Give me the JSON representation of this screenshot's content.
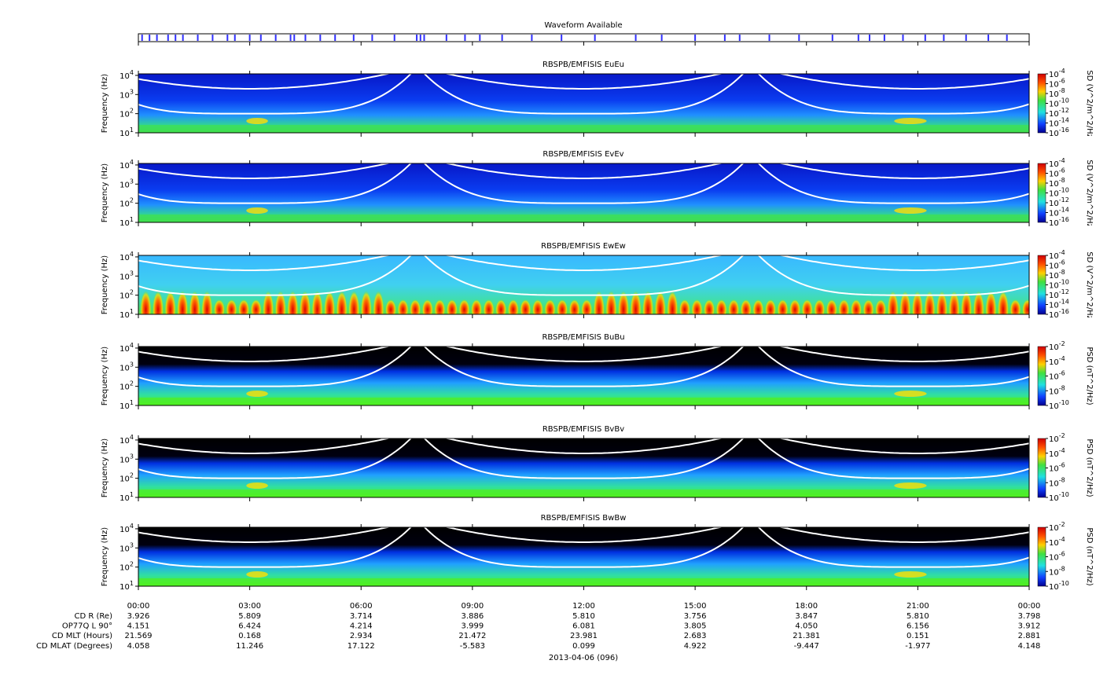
{
  "waveform": {
    "type": "event-bar",
    "title": "Waveform Available",
    "xlim": [
      0,
      24
    ],
    "color": "#3030ff",
    "events": [
      0.1,
      0.3,
      0.5,
      0.8,
      1.0,
      1.2,
      1.6,
      2.0,
      2.4,
      2.6,
      3.0,
      3.3,
      3.7,
      4.1,
      4.2,
      4.5,
      4.9,
      5.3,
      5.8,
      6.3,
      6.9,
      7.5,
      7.6,
      7.7,
      8.3,
      8.8,
      9.2,
      9.8,
      10.6,
      11.4,
      12.3,
      13.4,
      14.1,
      15.0,
      15.8,
      16.2,
      17.0,
      17.8,
      18.7,
      19.4,
      19.7,
      20.1,
      20.6,
      21.2,
      21.7,
      22.3,
      22.9,
      23.4
    ]
  },
  "chart_data": [
    {
      "type": "spectrogram",
      "title": "RBSPB/EMFISIS  EuEu",
      "y_label": "Frequency (Hz)",
      "colorbar_label": "PSD (V^2/m^2/Hz)",
      "ylim": [
        10,
        12000
      ],
      "log_y": true,
      "yticks": [
        {
          "value": 10,
          "label": "10",
          "exponent": "1"
        },
        {
          "value": 100,
          "label": "10",
          "exponent": "2"
        },
        {
          "value": 1000,
          "label": "10",
          "exponent": "3"
        },
        {
          "value": 10000,
          "label": "10",
          "exponent": "4"
        }
      ],
      "clim": [
        1e-16,
        0.0001
      ],
      "cticks": [
        {
          "value": 0.0001,
          "label": "10",
          "exponent": "-4"
        },
        {
          "value": 1e-06,
          "label": "10",
          "exponent": "-6"
        },
        {
          "value": 1e-08,
          "label": "10",
          "exponent": "-8"
        },
        {
          "value": 1e-10,
          "label": "10",
          "exponent": "-10"
        },
        {
          "value": 1e-12,
          "label": "10",
          "exponent": "-12"
        },
        {
          "value": 1e-14,
          "label": "10",
          "exponent": "-14"
        },
        {
          "value": 1e-16,
          "label": "10",
          "exponent": "-16"
        }
      ]
    },
    {
      "type": "spectrogram",
      "title": "RBSPB/EMFISIS  EvEv",
      "y_label": "Frequency (Hz)",
      "colorbar_label": "PSD (V^2/m^2/Hz)",
      "ylim": [
        10,
        12000
      ],
      "log_y": true,
      "yticks": [
        {
          "value": 10,
          "label": "10",
          "exponent": "1"
        },
        {
          "value": 100,
          "label": "10",
          "exponent": "2"
        },
        {
          "value": 1000,
          "label": "10",
          "exponent": "3"
        },
        {
          "value": 10000,
          "label": "10",
          "exponent": "4"
        }
      ],
      "clim": [
        1e-16,
        0.0001
      ],
      "cticks": [
        {
          "value": 0.0001,
          "label": "10",
          "exponent": "-4"
        },
        {
          "value": 1e-06,
          "label": "10",
          "exponent": "-6"
        },
        {
          "value": 1e-08,
          "label": "10",
          "exponent": "-8"
        },
        {
          "value": 1e-10,
          "label": "10",
          "exponent": "-10"
        },
        {
          "value": 1e-12,
          "label": "10",
          "exponent": "-12"
        },
        {
          "value": 1e-14,
          "label": "10",
          "exponent": "-14"
        },
        {
          "value": 1e-16,
          "label": "10",
          "exponent": "-16"
        }
      ]
    },
    {
      "type": "spectrogram",
      "title": "RBSPB/EMFISIS  EwEw",
      "y_label": "Frequency (Hz)",
      "colorbar_label": "PSD (V^2/m^2/Hz)",
      "ylim": [
        10,
        12000
      ],
      "log_y": true,
      "yticks": [
        {
          "value": 10,
          "label": "10",
          "exponent": "1"
        },
        {
          "value": 100,
          "label": "10",
          "exponent": "2"
        },
        {
          "value": 1000,
          "label": "10",
          "exponent": "3"
        },
        {
          "value": 10000,
          "label": "10",
          "exponent": "4"
        }
      ],
      "clim": [
        1e-16,
        0.0001
      ],
      "cticks": [
        {
          "value": 0.0001,
          "label": "10",
          "exponent": "-4"
        },
        {
          "value": 1e-06,
          "label": "10",
          "exponent": "-6"
        },
        {
          "value": 1e-08,
          "label": "10",
          "exponent": "-8"
        },
        {
          "value": 1e-10,
          "label": "10",
          "exponent": "-10"
        },
        {
          "value": 1e-12,
          "label": "10",
          "exponent": "-12"
        },
        {
          "value": 1e-14,
          "label": "10",
          "exponent": "-14"
        },
        {
          "value": 1e-16,
          "label": "10",
          "exponent": "-16"
        }
      ]
    },
    {
      "type": "spectrogram",
      "title": "RBSPB/EMFISIS  BuBu",
      "y_label": "Frequency (Hz)",
      "colorbar_label": "PSD (nT^2/Hz)",
      "ylim": [
        10,
        12000
      ],
      "log_y": true,
      "yticks": [
        {
          "value": 10,
          "label": "10",
          "exponent": "1"
        },
        {
          "value": 100,
          "label": "10",
          "exponent": "2"
        },
        {
          "value": 1000,
          "label": "10",
          "exponent": "3"
        },
        {
          "value": 10000,
          "label": "10",
          "exponent": "4"
        }
      ],
      "clim": [
        1e-10,
        0.01
      ],
      "cticks": [
        {
          "value": 0.01,
          "label": "10",
          "exponent": "-2"
        },
        {
          "value": 0.0001,
          "label": "10",
          "exponent": "-4"
        },
        {
          "value": 1e-06,
          "label": "10",
          "exponent": "-6"
        },
        {
          "value": 1e-08,
          "label": "10",
          "exponent": "-8"
        },
        {
          "value": 1e-10,
          "label": "10",
          "exponent": "-10"
        }
      ]
    },
    {
      "type": "spectrogram",
      "title": "RBSPB/EMFISIS  BvBv",
      "y_label": "Frequency (Hz)",
      "colorbar_label": "PSD (nT^2/Hz)",
      "ylim": [
        10,
        12000
      ],
      "log_y": true,
      "yticks": [
        {
          "value": 10,
          "label": "10",
          "exponent": "1"
        },
        {
          "value": 100,
          "label": "10",
          "exponent": "2"
        },
        {
          "value": 1000,
          "label": "10",
          "exponent": "3"
        },
        {
          "value": 10000,
          "label": "10",
          "exponent": "4"
        }
      ],
      "clim": [
        1e-10,
        0.01
      ],
      "cticks": [
        {
          "value": 0.01,
          "label": "10",
          "exponent": "-2"
        },
        {
          "value": 0.0001,
          "label": "10",
          "exponent": "-4"
        },
        {
          "value": 1e-06,
          "label": "10",
          "exponent": "-6"
        },
        {
          "value": 1e-08,
          "label": "10",
          "exponent": "-8"
        },
        {
          "value": 1e-10,
          "label": "10",
          "exponent": "-10"
        }
      ]
    },
    {
      "type": "spectrogram",
      "title": "RBSPB/EMFISIS  BwBw",
      "y_label": "Frequency (Hz)",
      "colorbar_label": "PSD (nT^2/Hz)",
      "ylim": [
        10,
        12000
      ],
      "log_y": true,
      "yticks": [
        {
          "value": 10,
          "label": "10",
          "exponent": "1"
        },
        {
          "value": 100,
          "label": "10",
          "exponent": "2"
        },
        {
          "value": 1000,
          "label": "10",
          "exponent": "3"
        },
        {
          "value": 10000,
          "label": "10",
          "exponent": "4"
        }
      ],
      "clim": [
        1e-10,
        0.01
      ],
      "cticks": [
        {
          "value": 0.01,
          "label": "10",
          "exponent": "-2"
        },
        {
          "value": 0.0001,
          "label": "10",
          "exponent": "-4"
        },
        {
          "value": 1e-06,
          "label": "10",
          "exponent": "-6"
        },
        {
          "value": 1e-08,
          "label": "10",
          "exponent": "-8"
        },
        {
          "value": 1e-10,
          "label": "10",
          "exponent": "-10"
        }
      ]
    }
  ],
  "x_axis": {
    "xlim": [
      0,
      24
    ],
    "xticks": [
      {
        "value": 0,
        "label": "00:00"
      },
      {
        "value": 3,
        "label": "03:00"
      },
      {
        "value": 6,
        "label": "06:00"
      },
      {
        "value": 9,
        "label": "09:00"
      },
      {
        "value": 12,
        "label": "12:00"
      },
      {
        "value": 15,
        "label": "15:00"
      },
      {
        "value": 18,
        "label": "18:00"
      },
      {
        "value": 21,
        "label": "21:00"
      },
      {
        "value": 24,
        "label": "00:00"
      }
    ],
    "ephemeris": [
      {
        "label": "CD R (Re)",
        "values": [
          "3.926",
          "5.809",
          "3.714",
          "3.886",
          "5.810",
          "3.756",
          "3.847",
          "5.810",
          "3.798"
        ]
      },
      {
        "label": "OP77Q L 90°",
        "values": [
          "4.151",
          "6.424",
          "4.214",
          "3.999",
          "6.081",
          "3.805",
          "4.050",
          "6.156",
          "3.912"
        ]
      },
      {
        "label": "CD MLT (Hours)",
        "values": [
          "21.569",
          "0.168",
          "2.934",
          "21.472",
          "23.981",
          "2.683",
          "21.381",
          "0.151",
          "2.881"
        ]
      },
      {
        "label": "CD MLAT (Degrees)",
        "values": [
          "4.058",
          "11.246",
          "17.122",
          "-5.583",
          "0.099",
          "4.922",
          "-9.447",
          "-1.977",
          "4.148"
        ]
      }
    ],
    "date": "2013-04-06 (096)"
  }
}
